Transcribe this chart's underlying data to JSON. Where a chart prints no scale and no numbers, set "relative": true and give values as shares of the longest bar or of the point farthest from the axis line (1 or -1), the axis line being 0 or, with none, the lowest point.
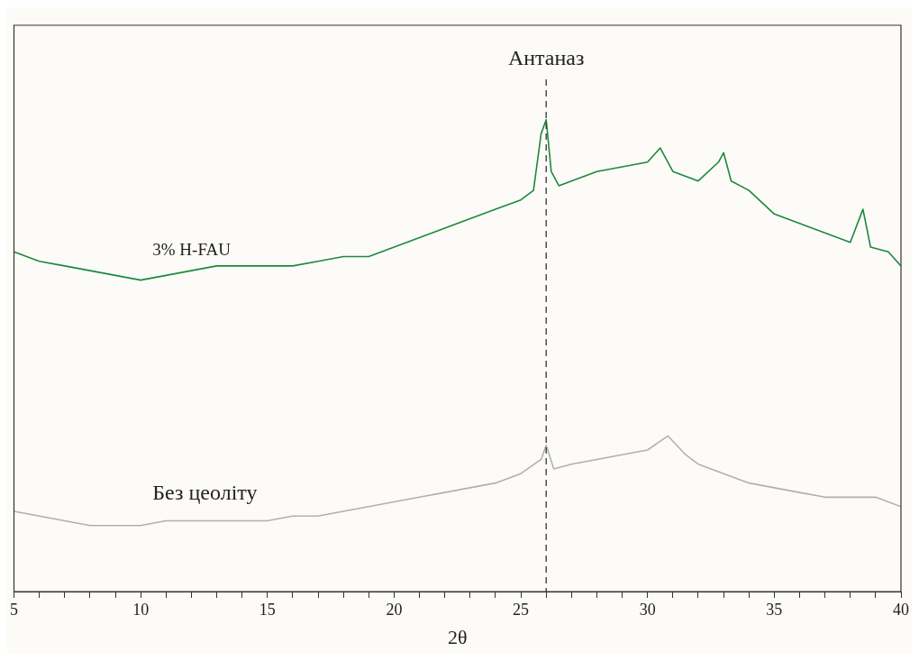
{
  "chart_data": {
    "type": "line",
    "relative": true,
    "xlabel": "2θ",
    "xlim": [
      5,
      40
    ],
    "xticks": [
      5,
      {
        "value": 6,
        "label": null
      },
      {
        "value": 7,
        "label": null
      },
      {
        "value": 8,
        "label": null
      },
      {
        "value": 9,
        "label": null
      },
      10,
      {
        "value": 11,
        "label": null
      },
      {
        "value": 12,
        "label": null
      },
      {
        "value": 13,
        "label": null
      },
      {
        "value": 14,
        "label": null
      },
      15,
      {
        "value": 16,
        "label": null
      },
      {
        "value": 17,
        "label": null
      },
      {
        "value": 18,
        "label": null
      },
      {
        "value": 19,
        "label": null
      },
      20,
      {
        "value": 21,
        "label": null
      },
      {
        "value": 22,
        "label": null
      },
      {
        "value": 23,
        "label": null
      },
      {
        "value": 24,
        "label": null
      },
      25,
      {
        "value": 26,
        "label": null
      },
      {
        "value": 27,
        "label": null
      },
      {
        "value": 28,
        "label": null
      },
      {
        "value": 29,
        "label": null
      },
      30,
      {
        "value": 31,
        "label": null
      },
      {
        "value": 32,
        "label": null
      },
      {
        "value": 33,
        "label": null
      },
      {
        "value": 34,
        "label": null
      },
      35,
      {
        "value": 36,
        "label": null
      },
      {
        "value": 37,
        "label": null
      },
      {
        "value": 38,
        "label": null
      },
      {
        "value": 39,
        "label": null
      },
      40
    ],
    "series": [
      {
        "name": "3% H-FAU",
        "color": "#1a8a3a",
        "x": [
          5,
          6,
          7,
          8,
          9,
          10,
          11,
          12,
          13,
          14,
          15,
          16,
          17,
          18,
          19,
          20,
          21,
          22,
          23,
          24,
          25,
          25.5,
          25.8,
          26,
          26.2,
          26.5,
          27,
          28,
          29,
          30,
          30.5,
          31,
          32,
          32.8,
          33,
          33.3,
          34,
          35,
          36,
          37,
          38,
          38.5,
          38.8,
          39.5,
          40
        ],
        "values": [
          0.72,
          0.7,
          0.69,
          0.68,
          0.67,
          0.66,
          0.67,
          0.68,
          0.69,
          0.69,
          0.69,
          0.69,
          0.7,
          0.71,
          0.71,
          0.73,
          0.75,
          0.77,
          0.79,
          0.81,
          0.83,
          0.85,
          0.97,
          1,
          0.89,
          0.86,
          0.87,
          0.89,
          0.9,
          0.91,
          0.94,
          0.89,
          0.87,
          0.91,
          0.93,
          0.87,
          0.85,
          0.8,
          0.78,
          0.76,
          0.74,
          0.81,
          0.73,
          0.72,
          0.69
        ]
      },
      {
        "name": "Без цеоліту",
        "color": "#b0b0b4",
        "x": [
          5,
          6,
          7,
          8,
          9,
          10,
          11,
          12,
          13,
          14,
          15,
          16,
          17,
          18,
          19,
          20,
          21,
          22,
          23,
          24,
          25,
          25.8,
          26,
          26.3,
          27,
          28,
          29,
          30,
          30.8,
          31.5,
          32,
          33,
          34,
          35,
          36,
          37,
          38,
          39,
          40
        ],
        "values": [
          0.17,
          0.16,
          0.15,
          0.14,
          0.14,
          0.14,
          0.15,
          0.15,
          0.15,
          0.15,
          0.15,
          0.16,
          0.16,
          0.17,
          0.18,
          0.19,
          0.2,
          0.21,
          0.22,
          0.23,
          0.25,
          0.28,
          0.31,
          0.26,
          0.27,
          0.28,
          0.29,
          0.3,
          0.33,
          0.29,
          0.27,
          0.25,
          0.23,
          0.22,
          0.21,
          0.2,
          0.2,
          0.2,
          0.18
        ]
      }
    ],
    "ref_lines": [
      {
        "axis": "x",
        "value": 26,
        "label": "Антаназ",
        "color": "#333333",
        "line_style": "dashed"
      }
    ]
  }
}
